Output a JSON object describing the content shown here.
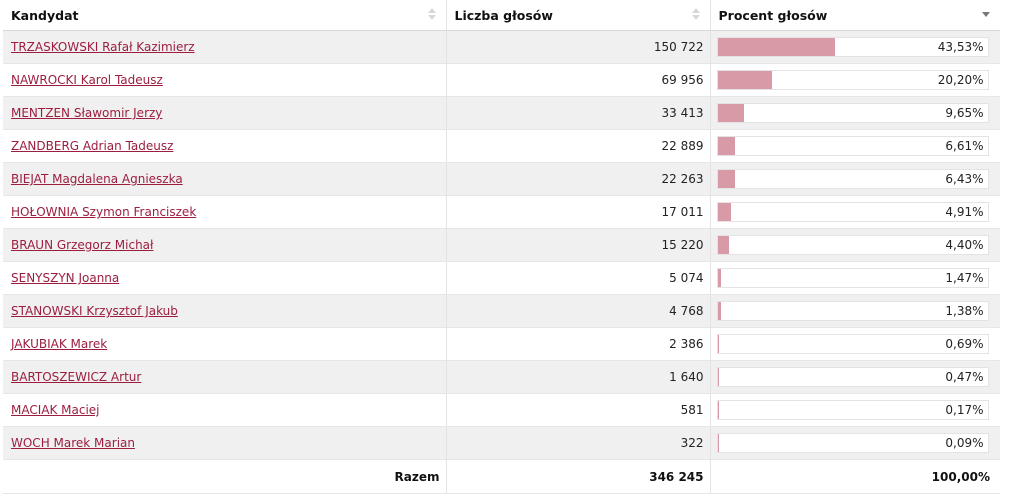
{
  "table": {
    "headers": {
      "candidate": "Kandydat",
      "votes": "Liczba głosów",
      "percent": "Procent głosów"
    },
    "sort": {
      "active_column": "percent",
      "direction": "descending"
    },
    "bar_color": "#d99aa8",
    "link_color": "#9c1e3f",
    "rows": [
      {
        "name": "TRZASKOWSKI Rafał Kazimierz",
        "votes": "150 722",
        "percent": "43,53%",
        "percent_value": 43.53
      },
      {
        "name": "NAWROCKI Karol Tadeusz",
        "votes": "69 956",
        "percent": "20,20%",
        "percent_value": 20.2
      },
      {
        "name": "MENTZEN Sławomir Jerzy",
        "votes": "33 413",
        "percent": "9,65%",
        "percent_value": 9.65
      },
      {
        "name": "ZANDBERG Adrian Tadeusz",
        "votes": "22 889",
        "percent": "6,61%",
        "percent_value": 6.61
      },
      {
        "name": "BIEJAT Magdalena Agnieszka",
        "votes": "22 263",
        "percent": "6,43%",
        "percent_value": 6.43
      },
      {
        "name": "HOŁOWNIA Szymon Franciszek",
        "votes": "17 011",
        "percent": "4,91%",
        "percent_value": 4.91
      },
      {
        "name": "BRAUN Grzegorz Michał",
        "votes": "15 220",
        "percent": "4,40%",
        "percent_value": 4.4
      },
      {
        "name": "SENYSZYN Joanna",
        "votes": "5 074",
        "percent": "1,47%",
        "percent_value": 1.47
      },
      {
        "name": "STANOWSKI Krzysztof Jakub",
        "votes": "4 768",
        "percent": "1,38%",
        "percent_value": 1.38
      },
      {
        "name": "JAKUBIAK Marek",
        "votes": "2 386",
        "percent": "0,69%",
        "percent_value": 0.69
      },
      {
        "name": "BARTOSZEWICZ Artur",
        "votes": "1 640",
        "percent": "0,47%",
        "percent_value": 0.47
      },
      {
        "name": "MACIAK Maciej",
        "votes": "581",
        "percent": "0,17%",
        "percent_value": 0.17
      },
      {
        "name": "WOCH Marek Marian",
        "votes": "322",
        "percent": "0,09%",
        "percent_value": 0.09
      }
    ],
    "footer": {
      "label": "Razem",
      "votes": "346 245",
      "percent": "100,00%"
    }
  }
}
